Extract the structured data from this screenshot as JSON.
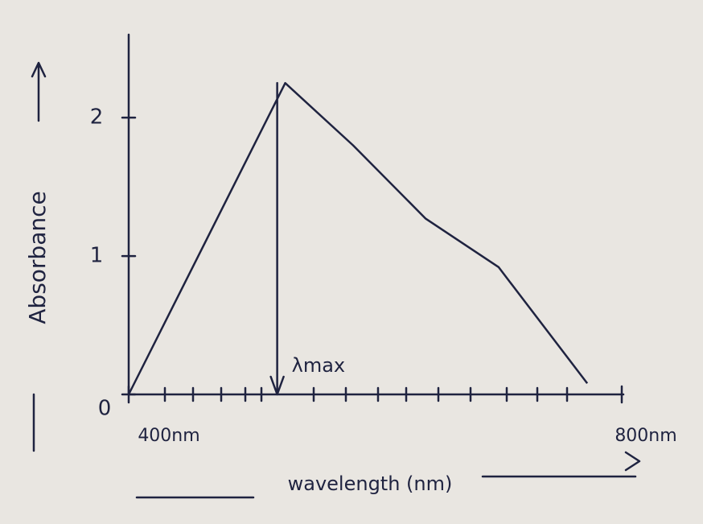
{
  "chart_data": {
    "type": "line",
    "ylabel": "Absorbance",
    "xlabel": "wavelength (nm)",
    "annotation": "λmax",
    "x": [
      400,
      527,
      582,
      641,
      700,
      772
    ],
    "series": [
      {
        "color": "#1f2340",
        "values": [
          0,
          2.25,
          1.8,
          1.27,
          0.92,
          0.08
        ]
      }
    ],
    "xlim": [
      400,
      800
    ],
    "ylim": [
      0,
      2.6
    ],
    "xticks": [
      {
        "value": 400,
        "label": "400nm"
      },
      {
        "value": 800,
        "label": "800nm"
      }
    ],
    "yticks": [
      0,
      1,
      2
    ],
    "grid": false
  }
}
